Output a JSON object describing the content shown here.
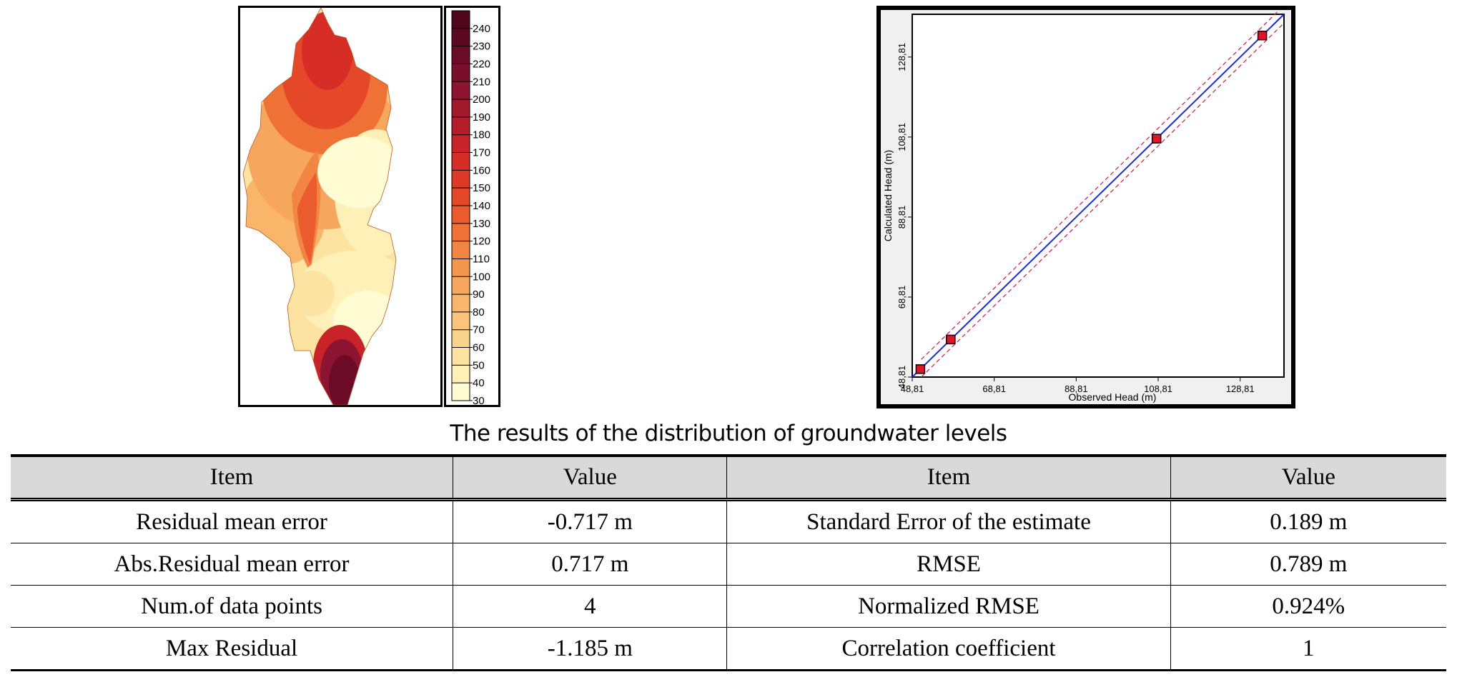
{
  "caption": "The results of the distribution of groundwater levels",
  "colors": {
    "legend": [
      "#fffbd3",
      "#fff0b8",
      "#fde3a1",
      "#fbd48b",
      "#fac47a",
      "#f9b66b",
      "#f7a65e",
      "#f5964f",
      "#f38542",
      "#ef7136",
      "#ea5c2d",
      "#e44828",
      "#de3926",
      "#d62d27",
      "#c82328",
      "#b51c2a",
      "#a2182c",
      "#8d1430",
      "#7a0f2c",
      "#6b0b27",
      "#5c0822",
      "#50061d"
    ],
    "marker": "#e0142a",
    "fit_line": "#1b2bd8",
    "band_line": "#d01850"
  },
  "legend": {
    "labels": [
      "240",
      "230",
      "220",
      "210",
      "200",
      "190",
      "180",
      "170",
      "160",
      "150",
      "140",
      "130",
      "120",
      "110",
      "100",
      "90",
      "80",
      "70",
      "60",
      "50",
      "40",
      "30"
    ]
  },
  "chart_data": {
    "type": "scatter",
    "title": "",
    "xlabel": "Observed Head (m)",
    "ylabel": "Calculated Head (m)",
    "xlim": [
      48.81,
      139.5
    ],
    "ylim": [
      48.81,
      139.5
    ],
    "xticks": [
      "48,81",
      "68,81",
      "88,81",
      "108,81",
      "128,81"
    ],
    "yticks": [
      "48,81",
      "68,81",
      "88,81",
      "108,81",
      "128,81"
    ],
    "tick_values": [
      48.81,
      68.81,
      88.81,
      108.81,
      128.81
    ],
    "grid": false,
    "x": [
      50.8,
      58.2,
      108.4,
      134.2
    ],
    "y": [
      50.8,
      58.2,
      108.4,
      134.2
    ],
    "fit_line": [
      [
        48.81,
        48.81
      ],
      [
        139.5,
        139.5
      ]
    ]
  },
  "table": {
    "headers": [
      "Item",
      "Value",
      "Item",
      "Value"
    ],
    "rows": [
      [
        "Residual mean error",
        "-0.717 m",
        "Standard Error of the estimate",
        "0.189 m"
      ],
      [
        "Abs.Residual mean error",
        "0.717 m",
        "RMSE",
        "0.789 m"
      ],
      [
        "Num.of data points",
        "4",
        "Normalized RMSE",
        "0.924%"
      ],
      [
        "Max Residual",
        "-1.185 m",
        "Correlation coefficient",
        "1"
      ]
    ]
  }
}
